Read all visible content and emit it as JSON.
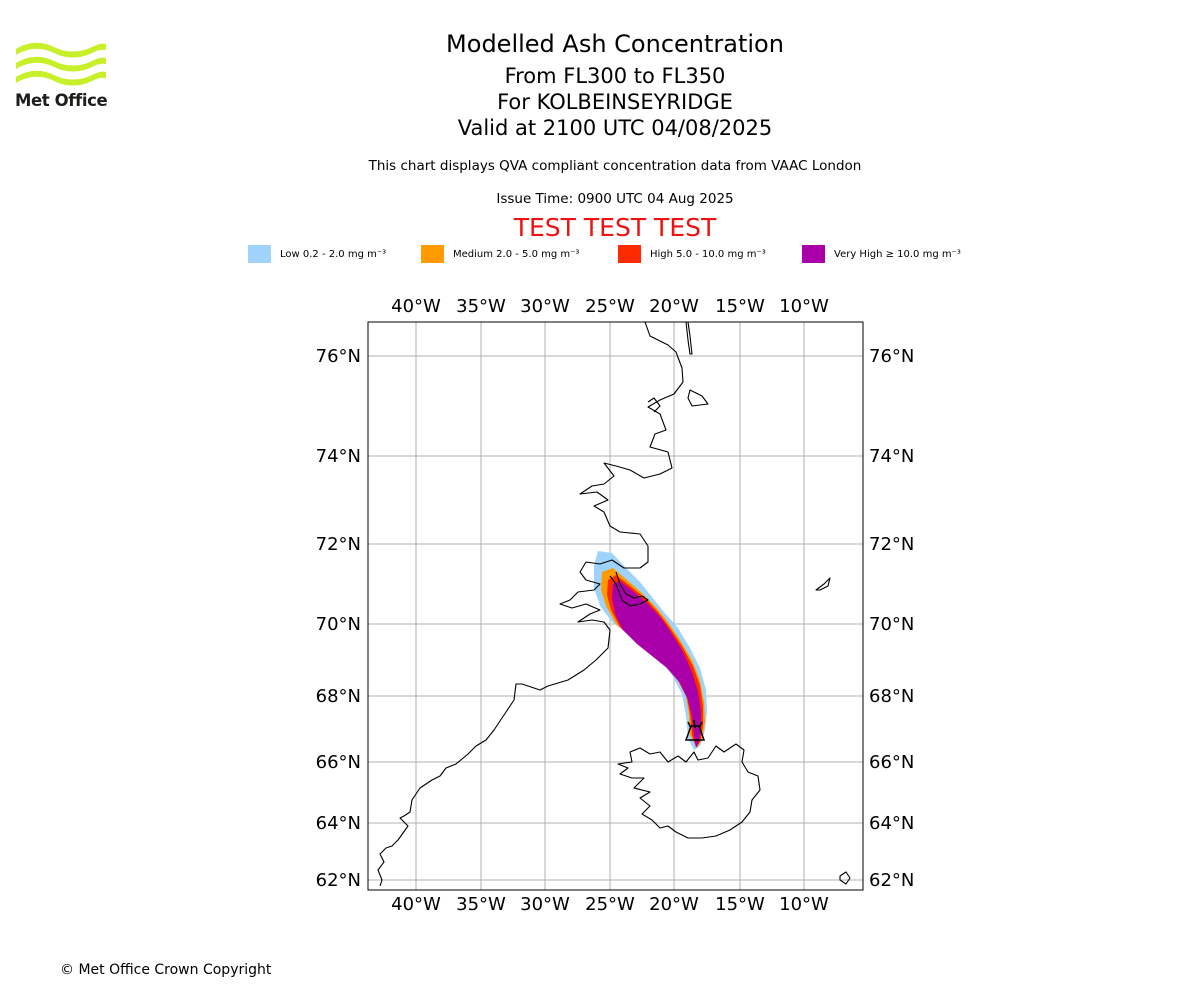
{
  "branding": {
    "logo_text": "Met Office",
    "copyright": "© Met Office Crown Copyright"
  },
  "header": {
    "title": "Modelled Ash Concentration",
    "levels": "From FL300 to FL350",
    "volcano": "For KOLBEINSEYRIDGE",
    "valid": "Valid at 2100 UTC 04/08/2025",
    "note": "This chart displays QVA compliant concentration data from VAAC London",
    "issue": "Issue Time: 0900 UTC 04 Aug 2025",
    "test_banner": "TEST TEST TEST"
  },
  "legend": [
    {
      "label": "Low 0.2 - 2.0 mg m⁻³",
      "color": "#9fd3fb"
    },
    {
      "label": "Medium 2.0 - 5.0 mg m⁻³",
      "color": "#ff9a00"
    },
    {
      "label": "High 5.0 - 10.0 mg m⁻³",
      "color": "#ff2a00"
    },
    {
      "label": "Very High  ≥  10.0 mg m⁻³",
      "color": "#aa00aa"
    }
  ],
  "map": {
    "longitude_labels": [
      "40°W",
      "35°W",
      "30°W",
      "25°W",
      "20°W",
      "15°W",
      "10°W"
    ],
    "latitude_labels": [
      "76°N",
      "74°N",
      "72°N",
      "70°N",
      "68°N",
      "66°N",
      "64°N",
      "62°N"
    ],
    "volcano_marker": "volcano-icon",
    "grid": true
  }
}
